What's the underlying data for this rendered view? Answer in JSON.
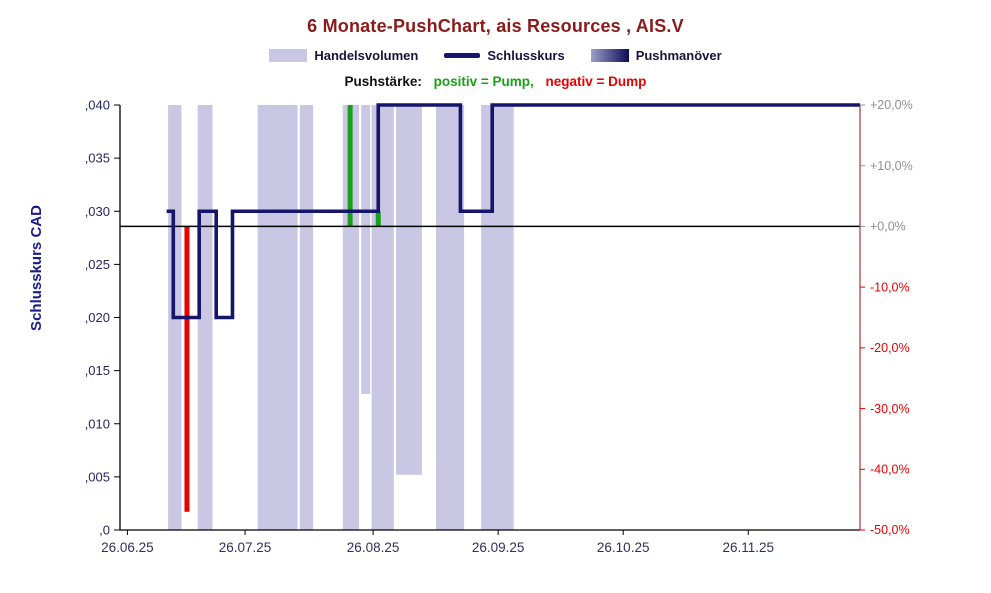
{
  "header": {
    "title": "6 Monate-PushChart, ais Resources , AIS.V",
    "legend": {
      "volume": "Handelsvolumen",
      "price": "Schlusskurs",
      "push": "Pushmanöver"
    },
    "push_note": {
      "prefix": "Pushstärke:",
      "pump": "positiv = Pump,",
      "dump": "negativ = Dump"
    }
  },
  "colors": {
    "volume": "#c9c7e3",
    "price_line": "#15156b",
    "pump": "#18a018",
    "dump": "#e80000",
    "zero_line": "#000000",
    "title": "#8b1a1a",
    "legend_text": "#14143c",
    "axis_text": "#262668",
    "axis_title": "#1b1b8a",
    "right_positive": "#909090",
    "right_negative": "#e60000",
    "x_text": "#303060",
    "right_spine": "#aa3333",
    "push_swatch_from": "#9aa2c8",
    "push_swatch_to": "#0b0b55"
  },
  "chart_data": {
    "type": "mixed",
    "title": "6 Monate-PushChart, ais Resources , AIS.V",
    "series_types": {
      "volume": "bar",
      "price": "step-line",
      "push": "bar"
    },
    "left_axis": {
      "title": "Schlusskurs CAD",
      "min": 0,
      "max": 0.04,
      "ticks": [
        ",040",
        ",035",
        ",030",
        ",025",
        ",020",
        ",015",
        ",010",
        ",005",
        ",0"
      ]
    },
    "right_axis": {
      "min": -50,
      "max": 20,
      "ticks": [
        {
          "label": "+20,0%",
          "pct": 20
        },
        {
          "label": "+10,0%",
          "pct": 10
        },
        {
          "label": "+0,0%",
          "pct": 0
        },
        {
          "label": "-10,0%",
          "pct": -10
        },
        {
          "label": "-20,0%",
          "pct": -20
        },
        {
          "label": "-30,0%",
          "pct": -30
        },
        {
          "label": "-40,0%",
          "pct": -40
        },
        {
          "label": "-50,0%",
          "pct": -50
        }
      ]
    },
    "x_axis": {
      "ticks": [
        {
          "label": "26.06.25",
          "x": 0.01
        },
        {
          "label": "26.07.25",
          "x": 0.169
        },
        {
          "label": "26.08.25",
          "x": 0.342
        },
        {
          "label": "26.09.25",
          "x": 0.511
        },
        {
          "label": "26.10.25",
          "x": 0.68
        },
        {
          "label": "26.11.25",
          "x": 0.849
        }
      ]
    },
    "price_series": {
      "name": "Schlusskurs",
      "unit": "CAD",
      "step_points": [
        {
          "x": 0.063,
          "v": 0.03
        },
        {
          "x": 0.072,
          "v": 0.02
        },
        {
          "x": 0.107,
          "v": 0.03
        },
        {
          "x": 0.13,
          "v": 0.02
        },
        {
          "x": 0.152,
          "v": 0.03
        },
        {
          "x": 0.349,
          "v": 0.04
        },
        {
          "x": 0.46,
          "v": 0.03
        },
        {
          "x": 0.503,
          "v": 0.04
        },
        {
          "x": 1.0,
          "v": 0.04
        }
      ]
    },
    "volume_bars": {
      "name": "Handelsvolumen",
      "top_anchored": true,
      "bars": [
        {
          "x": 0.065,
          "w": 0.018,
          "len": 1.0
        },
        {
          "x": 0.105,
          "w": 0.02,
          "len": 1.0
        },
        {
          "x": 0.186,
          "w": 0.054,
          "len": 1.0
        },
        {
          "x": 0.243,
          "w": 0.018,
          "len": 1.0
        },
        {
          "x": 0.301,
          "w": 0.022,
          "len": 1.0
        },
        {
          "x": 0.326,
          "w": 0.012,
          "len": 0.68
        },
        {
          "x": 0.34,
          "w": 0.03,
          "len": 1.0
        },
        {
          "x": 0.373,
          "w": 0.035,
          "len": 0.87
        },
        {
          "x": 0.427,
          "w": 0.038,
          "len": 1.0
        },
        {
          "x": 0.488,
          "w": 0.044,
          "len": 1.0
        }
      ]
    },
    "push_bars": {
      "name": "Pushmanöver",
      "unit": "%",
      "bars": [
        {
          "x": 0.0905,
          "pct": -47,
          "kind": "dump"
        },
        {
          "x": 0.311,
          "pct": 20,
          "kind": "pump"
        },
        {
          "x": 0.349,
          "pct": 2.5,
          "kind": "pump"
        }
      ]
    },
    "zero_line_pct": 0
  }
}
